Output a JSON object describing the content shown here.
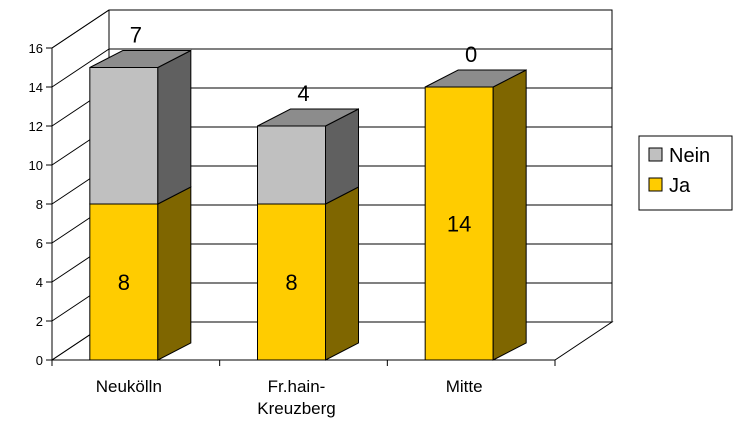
{
  "chart_data": {
    "type": "bar",
    "stacked": true,
    "three_d": true,
    "categories": [
      "Neukölln",
      "Fr.hain-\nKreuzberg",
      "Mitte"
    ],
    "series": [
      {
        "name": "Ja",
        "values": [
          8,
          8,
          14
        ],
        "color": "#FFCC00",
        "side_color": "#7F6600",
        "top_color": "#8C8C8C"
      },
      {
        "name": "Nein",
        "values": [
          7,
          4,
          0
        ],
        "color": "#C0C0C0",
        "side_color": "#606060",
        "top_color": "#8C8C8C"
      }
    ],
    "ylim": [
      0,
      16
    ],
    "yticks": [
      0,
      2,
      4,
      6,
      8,
      10,
      12,
      14,
      16
    ],
    "grid": true,
    "legend": "right",
    "legend_order": [
      "Nein",
      "Ja"
    ]
  }
}
